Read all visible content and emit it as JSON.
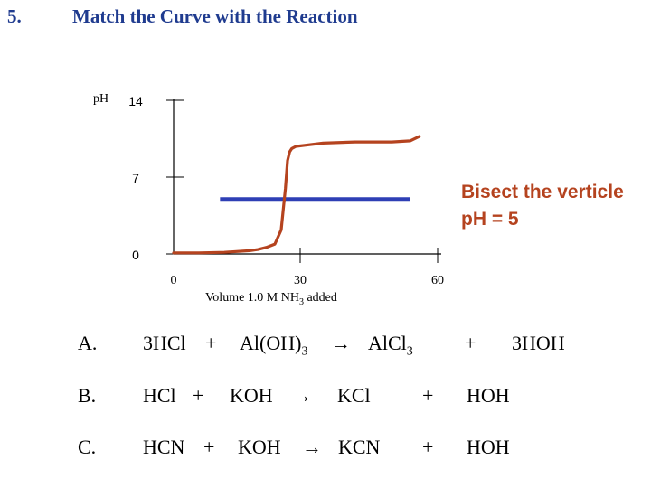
{
  "slide": {
    "number": "5.",
    "title": "Match the Curve with the Reaction"
  },
  "chart_data": {
    "type": "line",
    "title": "",
    "ylabel": "pH",
    "xlabel_parts": [
      "Volume 1.0 M NH",
      "3",
      " added"
    ],
    "xlim": [
      0,
      60
    ],
    "ylim": [
      0,
      14
    ],
    "x_ticks": [
      0,
      30,
      60
    ],
    "y_ticks": [
      0,
      7,
      14
    ],
    "grid": false,
    "colors": {
      "curve": "#b5431f",
      "bisect": "#2e3fb5",
      "axis": "#000000"
    },
    "series": [
      {
        "x": [
          0,
          6,
          12,
          18,
          20,
          22,
          24,
          25.5,
          26.5,
          27,
          27.5,
          28,
          29,
          31,
          35,
          42,
          50,
          54,
          56
        ],
        "y": [
          0.1,
          0.1,
          0.15,
          0.3,
          0.4,
          0.6,
          0.9,
          2.2,
          6.0,
          8.5,
          9.3,
          9.6,
          9.8,
          9.9,
          10.1,
          10.2,
          10.2,
          10.3,
          10.7
        ]
      }
    ],
    "bisect_line": {
      "y": 5,
      "x_start": 11,
      "x_end": 54
    },
    "annotation": [
      "Bisect the verticle",
      "pH = 5"
    ]
  },
  "reactions": [
    {
      "letter": "A.",
      "parts": [
        "3HCl",
        "+",
        "Al(OH)",
        "3",
        "→",
        "AlCl",
        "3",
        "+",
        "3HOH"
      ]
    },
    {
      "letter": "B.",
      "parts": [
        "HCl",
        "+",
        "KOH",
        "→",
        "KCl",
        "+",
        "HOH"
      ]
    },
    {
      "letter": "C.",
      "parts": [
        "HCN",
        "+",
        "KOH",
        "→",
        "KCN",
        "+",
        "HOH"
      ]
    }
  ]
}
